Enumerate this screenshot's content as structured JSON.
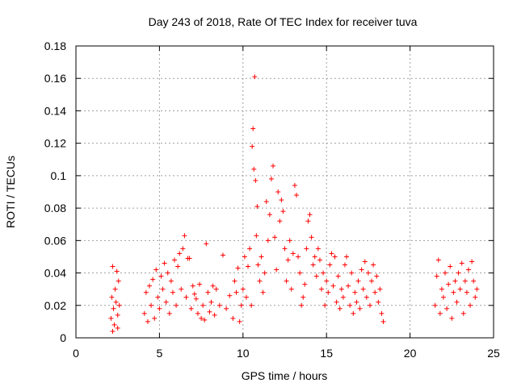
{
  "chart_data": {
    "type": "scatter",
    "title": "Day 243 of 2018, Rate Of TEC Index for receiver tuva",
    "xlabel": "GPS time / hours",
    "ylabel": "ROTI / TECUs",
    "xlim": [
      0,
      25
    ],
    "ylim": [
      0,
      0.18
    ],
    "x_ticks": [
      "0",
      "5",
      "10",
      "15",
      "20",
      "25"
    ],
    "y_ticks": [
      "0",
      "0.02",
      "0.04",
      "0.06",
      "0.08",
      "0.1",
      "0.12",
      "0.14",
      "0.16",
      "0.18"
    ],
    "grid": true,
    "legend": "none",
    "marker": "plus",
    "color": "#ff0000",
    "series": [
      {
        "points": [
          [
            2.1,
            0.012
          ],
          [
            2.15,
            0.025
          ],
          [
            2.2,
            0.044
          ],
          [
            2.25,
            0.018
          ],
          [
            2.3,
            0.008
          ],
          [
            2.35,
            0.03
          ],
          [
            2.4,
            0.022
          ],
          [
            2.45,
            0.041
          ],
          [
            2.5,
            0.014
          ],
          [
            2.55,
            0.035
          ],
          [
            2.6,
            0.02
          ],
          [
            2.2,
            0.004
          ],
          [
            2.5,
            0.006
          ],
          [
            4.1,
            0.015
          ],
          [
            4.2,
            0.028
          ],
          [
            4.3,
            0.01
          ],
          [
            4.4,
            0.032
          ],
          [
            4.5,
            0.02
          ],
          [
            4.6,
            0.036
          ],
          [
            4.7,
            0.012
          ],
          [
            4.8,
            0.042
          ],
          [
            4.9,
            0.025
          ],
          [
            5.0,
            0.018
          ],
          [
            5.1,
            0.038
          ],
          [
            5.2,
            0.03
          ],
          [
            5.3,
            0.046
          ],
          [
            5.4,
            0.022
          ],
          [
            5.5,
            0.04
          ],
          [
            5.6,
            0.015
          ],
          [
            5.7,
            0.035
          ],
          [
            5.8,
            0.028
          ],
          [
            5.9,
            0.048
          ],
          [
            6.0,
            0.02
          ],
          [
            6.1,
            0.044
          ],
          [
            6.2,
            0.052
          ],
          [
            6.3,
            0.03
          ],
          [
            6.4,
            0.055
          ],
          [
            6.5,
            0.063
          ],
          [
            6.6,
            0.025
          ],
          [
            6.7,
            0.049
          ],
          [
            6.8,
            0.049
          ],
          [
            6.9,
            0.018
          ],
          [
            7.0,
            0.032
          ],
          [
            7.1,
            0.027
          ],
          [
            7.2,
            0.024
          ],
          [
            7.3,
            0.015
          ],
          [
            7.4,
            0.033
          ],
          [
            7.5,
            0.012
          ],
          [
            7.6,
            0.02
          ],
          [
            7.7,
            0.011
          ],
          [
            7.8,
            0.058
          ],
          [
            7.9,
            0.028
          ],
          [
            8.0,
            0.016
          ],
          [
            8.1,
            0.022
          ],
          [
            8.2,
            0.032
          ],
          [
            8.3,
            0.014
          ],
          [
            8.4,
            0.03
          ],
          [
            8.6,
            0.02
          ],
          [
            8.8,
            0.051
          ],
          [
            9.0,
            0.018
          ],
          [
            9.2,
            0.026
          ],
          [
            9.4,
            0.012
          ],
          [
            9.5,
            0.035
          ],
          [
            9.6,
            0.028
          ],
          [
            9.7,
            0.043
          ],
          [
            9.8,
            0.01
          ],
          [
            9.9,
            0.02
          ],
          [
            10.0,
            0.03
          ],
          [
            10.1,
            0.05
          ],
          [
            10.2,
            0.025
          ],
          [
            10.3,
            0.044
          ],
          [
            10.4,
            0.055
          ],
          [
            10.5,
            0.02
          ],
          [
            10.55,
            0.118
          ],
          [
            10.6,
            0.129
          ],
          [
            10.65,
            0.104
          ],
          [
            10.7,
            0.161
          ],
          [
            10.75,
            0.097
          ],
          [
            10.8,
            0.063
          ],
          [
            10.85,
            0.081
          ],
          [
            10.9,
            0.045
          ],
          [
            11.0,
            0.035
          ],
          [
            11.1,
            0.05
          ],
          [
            11.2,
            0.028
          ],
          [
            11.3,
            0.04
          ],
          [
            11.4,
            0.084
          ],
          [
            11.5,
            0.06
          ],
          [
            11.6,
            0.076
          ],
          [
            11.7,
            0.098
          ],
          [
            11.8,
            0.106
          ],
          [
            11.9,
            0.062
          ],
          [
            12.0,
            0.042
          ],
          [
            12.1,
            0.09
          ],
          [
            12.2,
            0.072
          ],
          [
            12.3,
            0.085
          ],
          [
            12.4,
            0.078
          ],
          [
            12.5,
            0.055
          ],
          [
            12.6,
            0.035
          ],
          [
            12.7,
            0.048
          ],
          [
            12.8,
            0.06
          ],
          [
            12.9,
            0.03
          ],
          [
            13.0,
            0.052
          ],
          [
            13.1,
            0.094
          ],
          [
            13.2,
            0.088
          ],
          [
            13.3,
            0.05
          ],
          [
            13.4,
            0.04
          ],
          [
            13.5,
            0.02
          ],
          [
            13.6,
            0.025
          ],
          [
            13.7,
            0.033
          ],
          [
            13.8,
            0.055
          ],
          [
            13.9,
            0.072
          ],
          [
            14.0,
            0.076
          ],
          [
            14.1,
            0.062
          ],
          [
            14.2,
            0.045
          ],
          [
            14.3,
            0.05
          ],
          [
            14.4,
            0.038
          ],
          [
            14.5,
            0.055
          ],
          [
            14.6,
            0.048
          ],
          [
            14.7,
            0.03
          ],
          [
            14.8,
            0.04
          ],
          [
            14.9,
            0.02
          ],
          [
            15.0,
            0.035
          ],
          [
            15.1,
            0.028
          ],
          [
            15.2,
            0.045
          ],
          [
            15.3,
            0.052
          ],
          [
            15.4,
            0.032
          ],
          [
            15.5,
            0.05
          ],
          [
            15.6,
            0.022
          ],
          [
            15.7,
            0.038
          ],
          [
            15.8,
            0.018
          ],
          [
            15.9,
            0.03
          ],
          [
            16.0,
            0.025
          ],
          [
            16.1,
            0.045
          ],
          [
            16.2,
            0.05
          ],
          [
            16.3,
            0.032
          ],
          [
            16.4,
            0.02
          ],
          [
            16.5,
            0.04
          ],
          [
            16.6,
            0.015
          ],
          [
            16.7,
            0.028
          ],
          [
            16.8,
            0.022
          ],
          [
            16.9,
            0.035
          ],
          [
            17.0,
            0.018
          ],
          [
            17.1,
            0.042
          ],
          [
            17.2,
            0.03
          ],
          [
            17.3,
            0.047
          ],
          [
            17.4,
            0.025
          ],
          [
            17.5,
            0.04
          ],
          [
            17.6,
            0.02
          ],
          [
            17.7,
            0.035
          ],
          [
            17.8,
            0.045
          ],
          [
            17.9,
            0.028
          ],
          [
            18.0,
            0.038
          ],
          [
            18.1,
            0.022
          ],
          [
            18.2,
            0.03
          ],
          [
            18.3,
            0.015
          ],
          [
            18.4,
            0.01
          ],
          [
            21.5,
            0.02
          ],
          [
            21.6,
            0.038
          ],
          [
            21.7,
            0.048
          ],
          [
            21.8,
            0.015
          ],
          [
            21.9,
            0.03
          ],
          [
            22.0,
            0.025
          ],
          [
            22.1,
            0.04
          ],
          [
            22.2,
            0.018
          ],
          [
            22.3,
            0.033
          ],
          [
            22.4,
            0.044
          ],
          [
            22.5,
            0.012
          ],
          [
            22.6,
            0.028
          ],
          [
            22.7,
            0.035
          ],
          [
            22.8,
            0.022
          ],
          [
            22.9,
            0.04
          ],
          [
            23.0,
            0.03
          ],
          [
            23.1,
            0.046
          ],
          [
            23.2,
            0.015
          ],
          [
            23.3,
            0.035
          ],
          [
            23.4,
            0.028
          ],
          [
            23.5,
            0.042
          ],
          [
            23.6,
            0.02
          ],
          [
            23.7,
            0.047
          ],
          [
            23.8,
            0.035
          ],
          [
            23.9,
            0.025
          ],
          [
            24.0,
            0.03
          ]
        ]
      }
    ]
  }
}
